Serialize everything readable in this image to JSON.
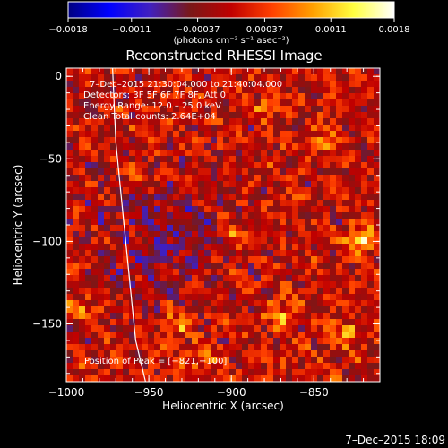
{
  "chart_data": {
    "type": "heatmap",
    "title": "Reconstructed RHESSI Image",
    "xlabel": "Heliocentric X (arcsec)",
    "ylabel": "Heliocentric Y (arcsec)",
    "xlim": [
      -1000,
      -810
    ],
    "ylim": [
      -185,
      5
    ],
    "x_ticks": [
      -1000,
      -950,
      -900,
      -850
    ],
    "y_ticks": [
      0,
      -50,
      -100,
      -150
    ],
    "x_tick_labels": [
      "−1000",
      "−950",
      "−900",
      "−850"
    ],
    "y_tick_labels": [
      "0",
      "−50",
      "−100",
      "−150"
    ],
    "grid": false,
    "colorbar": {
      "placement": "top",
      "range": [
        -0.0018,
        0.0018
      ],
      "ticks": [
        -0.0018,
        -0.0011,
        -0.00037,
        0.00037,
        0.0011,
        0.0018
      ],
      "tick_labels": [
        "−0.0018",
        "−0.0011",
        "−0.00037",
        "0.00037",
        "0.0011",
        "0.0018"
      ],
      "unit_label": "(photons cm⁻² s⁻¹ asec⁻²)",
      "colors": [
        "#000080",
        "#0000ff",
        "#4020c0",
        "#7a1818",
        "#c00000",
        "#ff4000",
        "#ffa000",
        "#ffff40",
        "#ffffff"
      ]
    },
    "annotations": [
      "7–Dec–2015 21:30:04.000 to 21:40:04.000",
      "Detectors: 3F 5F 6F 7F 8F, Att 0",
      "Energy Range: 12.0 – 25.0 keV",
      "Clean    Total counts: 2.64E+04"
    ],
    "peak_label": "Position of Peak = [−821,−100]",
    "peak_position": [
      -821,
      -100
    ],
    "limb_curve": {
      "x": [
        -972,
        -970,
        -966,
        -962,
        -958,
        -952
      ],
      "y": [
        5,
        -40,
        -80,
        -120,
        -160,
        -185
      ]
    },
    "bright_spots": [
      {
        "x": -821,
        "y": -100,
        "v": 0.0018
      },
      {
        "x": -869,
        "y": -145,
        "v": 0.0014
      },
      {
        "x": -930,
        "y": -150,
        "v": 0.0012
      },
      {
        "x": -830,
        "y": -155,
        "v": 0.0012
      },
      {
        "x": -900,
        "y": -95,
        "v": 0.0011
      },
      {
        "x": -990,
        "y": -140,
        "v": 0.001
      },
      {
        "x": -955,
        "y": -60,
        "v": 0.0009
      },
      {
        "x": -880,
        "y": -20,
        "v": 0.0009
      },
      {
        "x": -845,
        "y": -40,
        "v": 0.0009
      },
      {
        "x": -915,
        "y": -170,
        "v": 0.001
      }
    ]
  },
  "footer": {
    "timestamp": "7–Dec–2015 18:09"
  }
}
